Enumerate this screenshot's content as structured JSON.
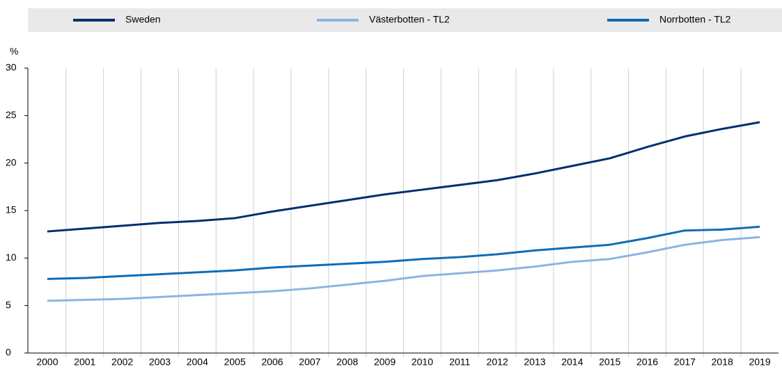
{
  "chart_data": {
    "type": "line",
    "y_label": "%",
    "categories": [
      "2000",
      "2001",
      "2002",
      "2003",
      "2004",
      "2005",
      "2006",
      "2007",
      "2008",
      "2009",
      "2010",
      "2011",
      "2012",
      "2013",
      "2014",
      "2015",
      "2016",
      "2017",
      "2018",
      "2019"
    ],
    "series": [
      {
        "name": "Sweden",
        "color": "#002f6c",
        "values": [
          12.8,
          13.1,
          13.4,
          13.7,
          13.9,
          14.2,
          14.9,
          15.5,
          16.1,
          16.7,
          17.2,
          17.7,
          18.2,
          18.9,
          19.7,
          20.5,
          21.7,
          22.8,
          23.6,
          24.3
        ]
      },
      {
        "name": "Västerbotten - TL2",
        "color": "#8cb4e2",
        "values": [
          5.5,
          5.6,
          5.7,
          5.9,
          6.1,
          6.3,
          6.5,
          6.8,
          7.2,
          7.6,
          8.1,
          8.4,
          8.7,
          9.1,
          9.6,
          9.9,
          10.6,
          11.4,
          11.9,
          12.2
        ]
      },
      {
        "name": "Norrbotten - TL2",
        "color": "#0f6cb6",
        "values": [
          7.8,
          7.9,
          8.1,
          8.3,
          8.5,
          8.7,
          9.0,
          9.2,
          9.4,
          9.6,
          9.9,
          10.1,
          10.4,
          10.8,
          11.1,
          11.4,
          12.1,
          12.9,
          13.0,
          13.3
        ]
      }
    ],
    "ylim": [
      0,
      30
    ],
    "yticks": [
      0,
      5,
      10,
      15,
      20,
      25,
      30
    ],
    "grid": false,
    "legend": "top"
  }
}
